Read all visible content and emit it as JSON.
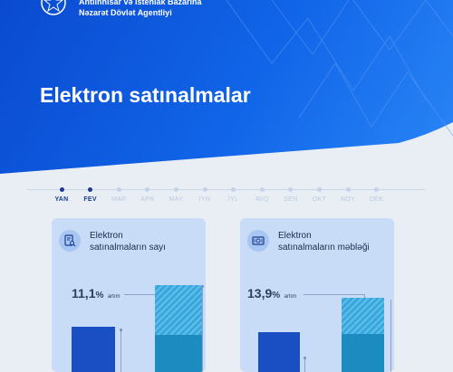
{
  "header": {
    "agency_line1": "Antiinhisar və İstehlak Bazarına",
    "agency_line2": "Nəzarət Dövlət Agentliyi",
    "logo_icon": "agency-emblem-icon",
    "title": "Elektron satınalmalar"
  },
  "timeline": {
    "months": [
      {
        "label": "YAN",
        "active": true
      },
      {
        "label": "FEV",
        "active": true
      },
      {
        "label": "MAR",
        "active": false
      },
      {
        "label": "APR",
        "active": false
      },
      {
        "label": "MAY",
        "active": false
      },
      {
        "label": "İYN",
        "active": false
      },
      {
        "label": "İYL",
        "active": false
      },
      {
        "label": "AVQ",
        "active": false
      },
      {
        "label": "SEN",
        "active": false
      },
      {
        "label": "OKT",
        "active": false
      },
      {
        "label": "NOY",
        "active": false
      },
      {
        "label": "DEK",
        "active": false
      }
    ]
  },
  "cards": [
    {
      "title_line1": "Elektron",
      "title_line2": "satınalmaların sayı",
      "icon": "document-search-icon",
      "growth_value": "11,1",
      "growth_sign": "%",
      "growth_word": "artım"
    },
    {
      "title_line1": "Elektron",
      "title_line2": "satınalmaların məbləği",
      "icon": "money-icon",
      "growth_value": "13,9",
      "growth_sign": "%",
      "growth_word": "artım"
    }
  ],
  "colors": {
    "hero_start": "#0a4ad0",
    "hero_end": "#2a86f6",
    "bar_dark": "#1a4fc4",
    "bar_teal": "#1c8bbf",
    "bar_hatch": "#4bb4e6",
    "card_bg": "#c8dcf7",
    "page_bg": "#e9eef4"
  }
}
